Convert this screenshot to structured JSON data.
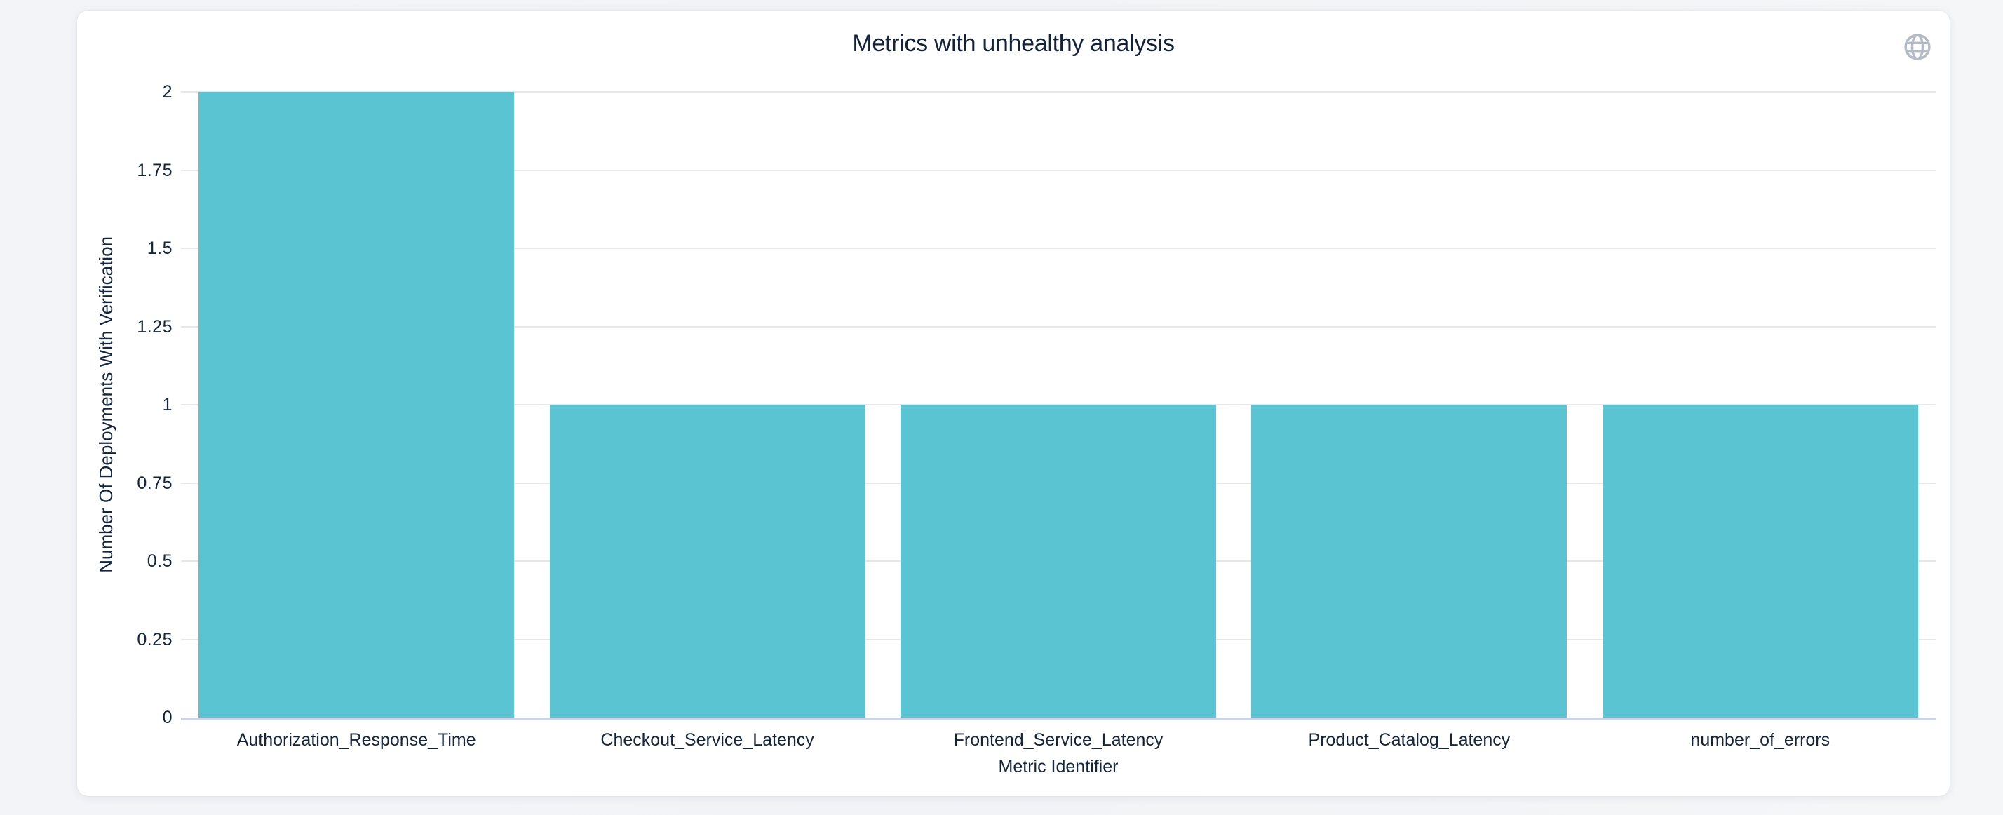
{
  "header": {
    "title": "Metrics with unhealthy analysis"
  },
  "chart_data": {
    "type": "bar",
    "title": "Metrics with unhealthy analysis",
    "categories": [
      "Authorization_Response_Time",
      "Checkout_Service_Latency",
      "Frontend_Service_Latency",
      "Product_Catalog_Latency",
      "number_of_errors"
    ],
    "values": [
      2,
      1,
      1,
      1,
      1
    ],
    "xlabel": "Metric Identifier",
    "ylabel": "Number Of Deployments With Verification",
    "ylim": [
      0,
      2
    ],
    "ytick_step": 0.25,
    "yticks": [
      "0",
      "0.25",
      "0.5",
      "0.75",
      "1",
      "1.25",
      "1.5",
      "1.75",
      "2"
    ],
    "grid": true,
    "legend_position": "none",
    "colors": {
      "bar": "#5bc4d2",
      "grid": "#e7e7ea",
      "zero_line": "#ccd3e6",
      "text": "#14253e",
      "title": "#13213a",
      "icon": "#b4bac6",
      "page_bg": "#f2f3f6",
      "card_bg": "#ffffff"
    }
  }
}
